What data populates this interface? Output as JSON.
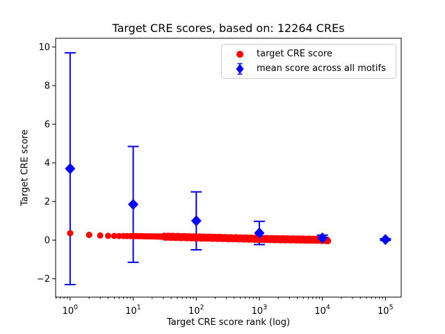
{
  "chart_data": {
    "type": "scatter",
    "title": "Target CRE scores, based on: 12264 CREs",
    "xlabel": "Target CRE score rank (log)",
    "ylabel": "Target CRE score",
    "x_scale": "log",
    "grid": false,
    "legend_position": "upper right",
    "xlim_log10": [
      -0.23,
      5.25
    ],
    "ylim": [
      -2.95,
      10.45
    ],
    "x_major_ticks": [
      1,
      10,
      100,
      1000,
      10000,
      100000
    ],
    "y_ticks": [
      -2,
      0,
      2,
      4,
      6,
      8,
      10
    ],
    "colors": {
      "target": "#ff0000",
      "mean": "#0000ff",
      "axis": "#000000",
      "legend_border": "#cccccc",
      "background": "#ffffff"
    },
    "legend": [
      {
        "label": "target CRE score",
        "marker": "circle",
        "color": "#ff0000"
      },
      {
        "label": "mean score across all motifs",
        "marker": "diamond-errorbar",
        "color": "#0000ff"
      }
    ],
    "series": [
      {
        "name": "target CRE score",
        "marker": "circle",
        "color": "#ff0000",
        "n_points": 12264,
        "anchors_rank_score": [
          [
            1,
            0.36
          ],
          [
            2,
            0.27
          ],
          [
            3,
            0.24
          ],
          [
            4,
            0.225
          ],
          [
            5,
            0.215
          ],
          [
            10,
            0.21
          ],
          [
            20,
            0.195
          ],
          [
            50,
            0.165
          ],
          [
            100,
            0.14
          ],
          [
            200,
            0.12
          ],
          [
            500,
            0.09
          ],
          [
            1000,
            0.065
          ],
          [
            2000,
            0.05
          ],
          [
            5000,
            0.03
          ],
          [
            10000,
            0.015
          ],
          [
            12264,
            0.0
          ]
        ]
      },
      {
        "name": "mean score across all motifs",
        "marker": "diamond",
        "color": "#0000ff",
        "points": [
          {
            "rank": 1,
            "mean": 3.7,
            "std": 6.0
          },
          {
            "rank": 10,
            "mean": 1.85,
            "std": 3.0
          },
          {
            "rank": 100,
            "mean": 1.0,
            "std": 1.5
          },
          {
            "rank": 1000,
            "mean": 0.37,
            "std": 0.6
          },
          {
            "rank": 10000,
            "mean": 0.11,
            "std": 0.15
          },
          {
            "rank": 100000,
            "mean": 0.03,
            "std": 0.04
          }
        ]
      }
    ]
  }
}
